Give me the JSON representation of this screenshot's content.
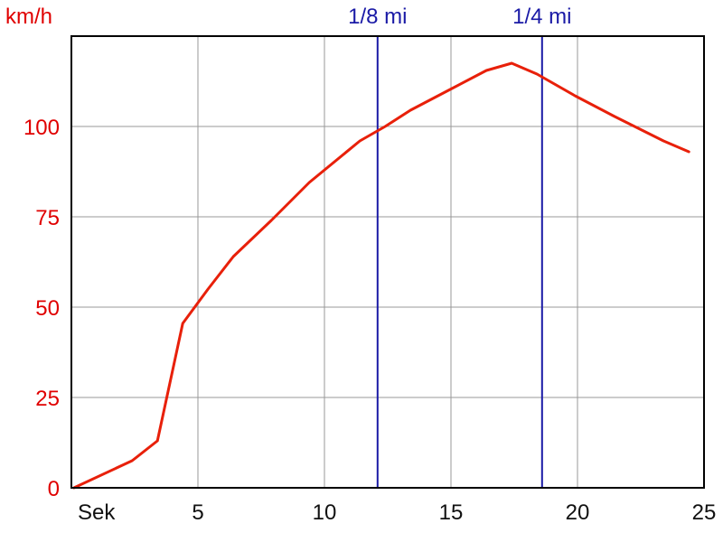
{
  "chart_data": {
    "type": "line",
    "title": "",
    "ylabel": "km/h",
    "xlabel": "Sek",
    "xlim": [
      0,
      25
    ],
    "ylim": [
      0,
      125
    ],
    "grid": true,
    "x_ticks": [
      "5",
      "10",
      "15",
      "20",
      "25"
    ],
    "y_ticks": [
      "0",
      "25",
      "50",
      "75",
      "100"
    ],
    "x_tick_values": [
      5,
      10,
      15,
      20,
      25
    ],
    "y_tick_values": [
      0,
      25,
      50,
      75,
      100
    ],
    "colors": {
      "curve": "#e8200a",
      "markers": "#1a1aa6",
      "axis_text": "#e00000",
      "grid": "#999999"
    },
    "markers": [
      {
        "label": "1/8 mi",
        "x": 12.1
      },
      {
        "label": "1/4 mi",
        "x": 18.6
      }
    ],
    "series": [
      {
        "values": [
          [
            0.1,
            0
          ],
          [
            2.4,
            7.5
          ],
          [
            3.4,
            13
          ],
          [
            4.4,
            45.5
          ],
          [
            5.4,
            55
          ],
          [
            6.4,
            64
          ],
          [
            7.9,
            74
          ],
          [
            9.4,
            84.5
          ],
          [
            11.4,
            96
          ],
          [
            12.4,
            100
          ],
          [
            13.4,
            104.5
          ],
          [
            14.9,
            110
          ],
          [
            16.4,
            115.5
          ],
          [
            17.4,
            117.5
          ],
          [
            18.4,
            114.5
          ],
          [
            19.9,
            108.5
          ],
          [
            21.4,
            103
          ],
          [
            23.4,
            96
          ],
          [
            24.4,
            93
          ]
        ]
      }
    ]
  }
}
